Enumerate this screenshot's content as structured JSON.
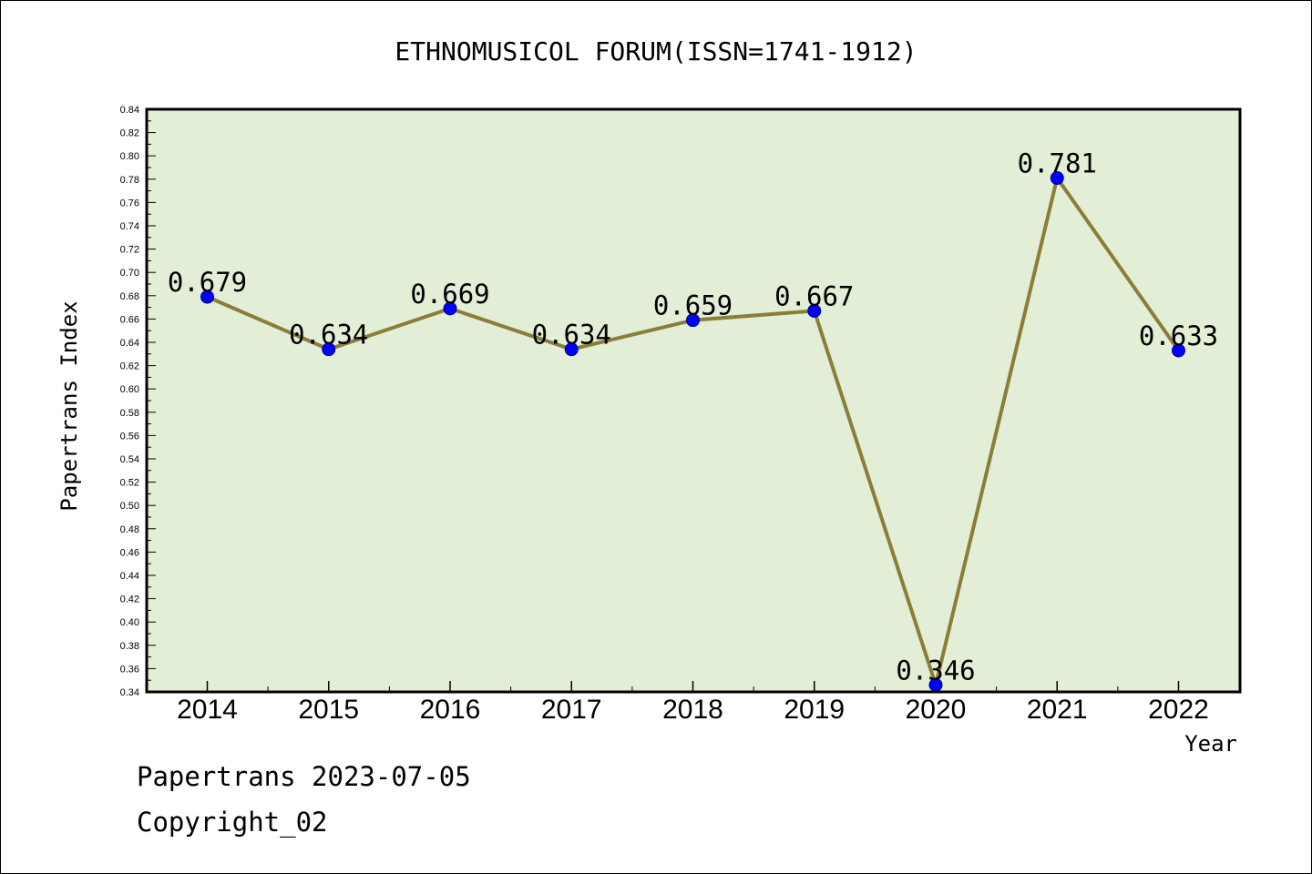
{
  "chart_data": {
    "type": "line",
    "title": "ETHNOMUSICOL FORUM(ISSN=1741-1912)",
    "xlabel": "Year",
    "ylabel": "Papertrans Index",
    "x": [
      "2014",
      "2015",
      "2016",
      "2017",
      "2018",
      "2019",
      "2020",
      "2021",
      "2022"
    ],
    "series": [
      {
        "values": [
          0.679,
          0.634,
          0.669,
          0.634,
          0.659,
          0.667,
          0.346,
          0.781,
          0.633
        ],
        "labels": [
          "0.679",
          "0.634",
          "0.669",
          "0.634",
          "0.659",
          "0.667",
          "0.346",
          "0.781",
          "0.633"
        ]
      }
    ],
    "ylim": [
      0.34,
      0.84
    ],
    "yticks": [
      "0.34",
      "0.36",
      "0.38",
      "0.40",
      "0.42",
      "0.44",
      "0.46",
      "0.48",
      "0.50",
      "0.52",
      "0.54",
      "0.56",
      "0.58",
      "0.60",
      "0.62",
      "0.64",
      "0.66",
      "0.68",
      "0.70",
      "0.72",
      "0.74",
      "0.76",
      "0.78",
      "0.80",
      "0.82",
      "0.84"
    ],
    "grid": false,
    "colors": {
      "plot_background": "#e2efd6",
      "line": "#8b7d3a",
      "marker": "#0000ff"
    }
  },
  "footer": {
    "line1": "Papertrans 2023-07-05",
    "line2": "Copyright_02"
  }
}
